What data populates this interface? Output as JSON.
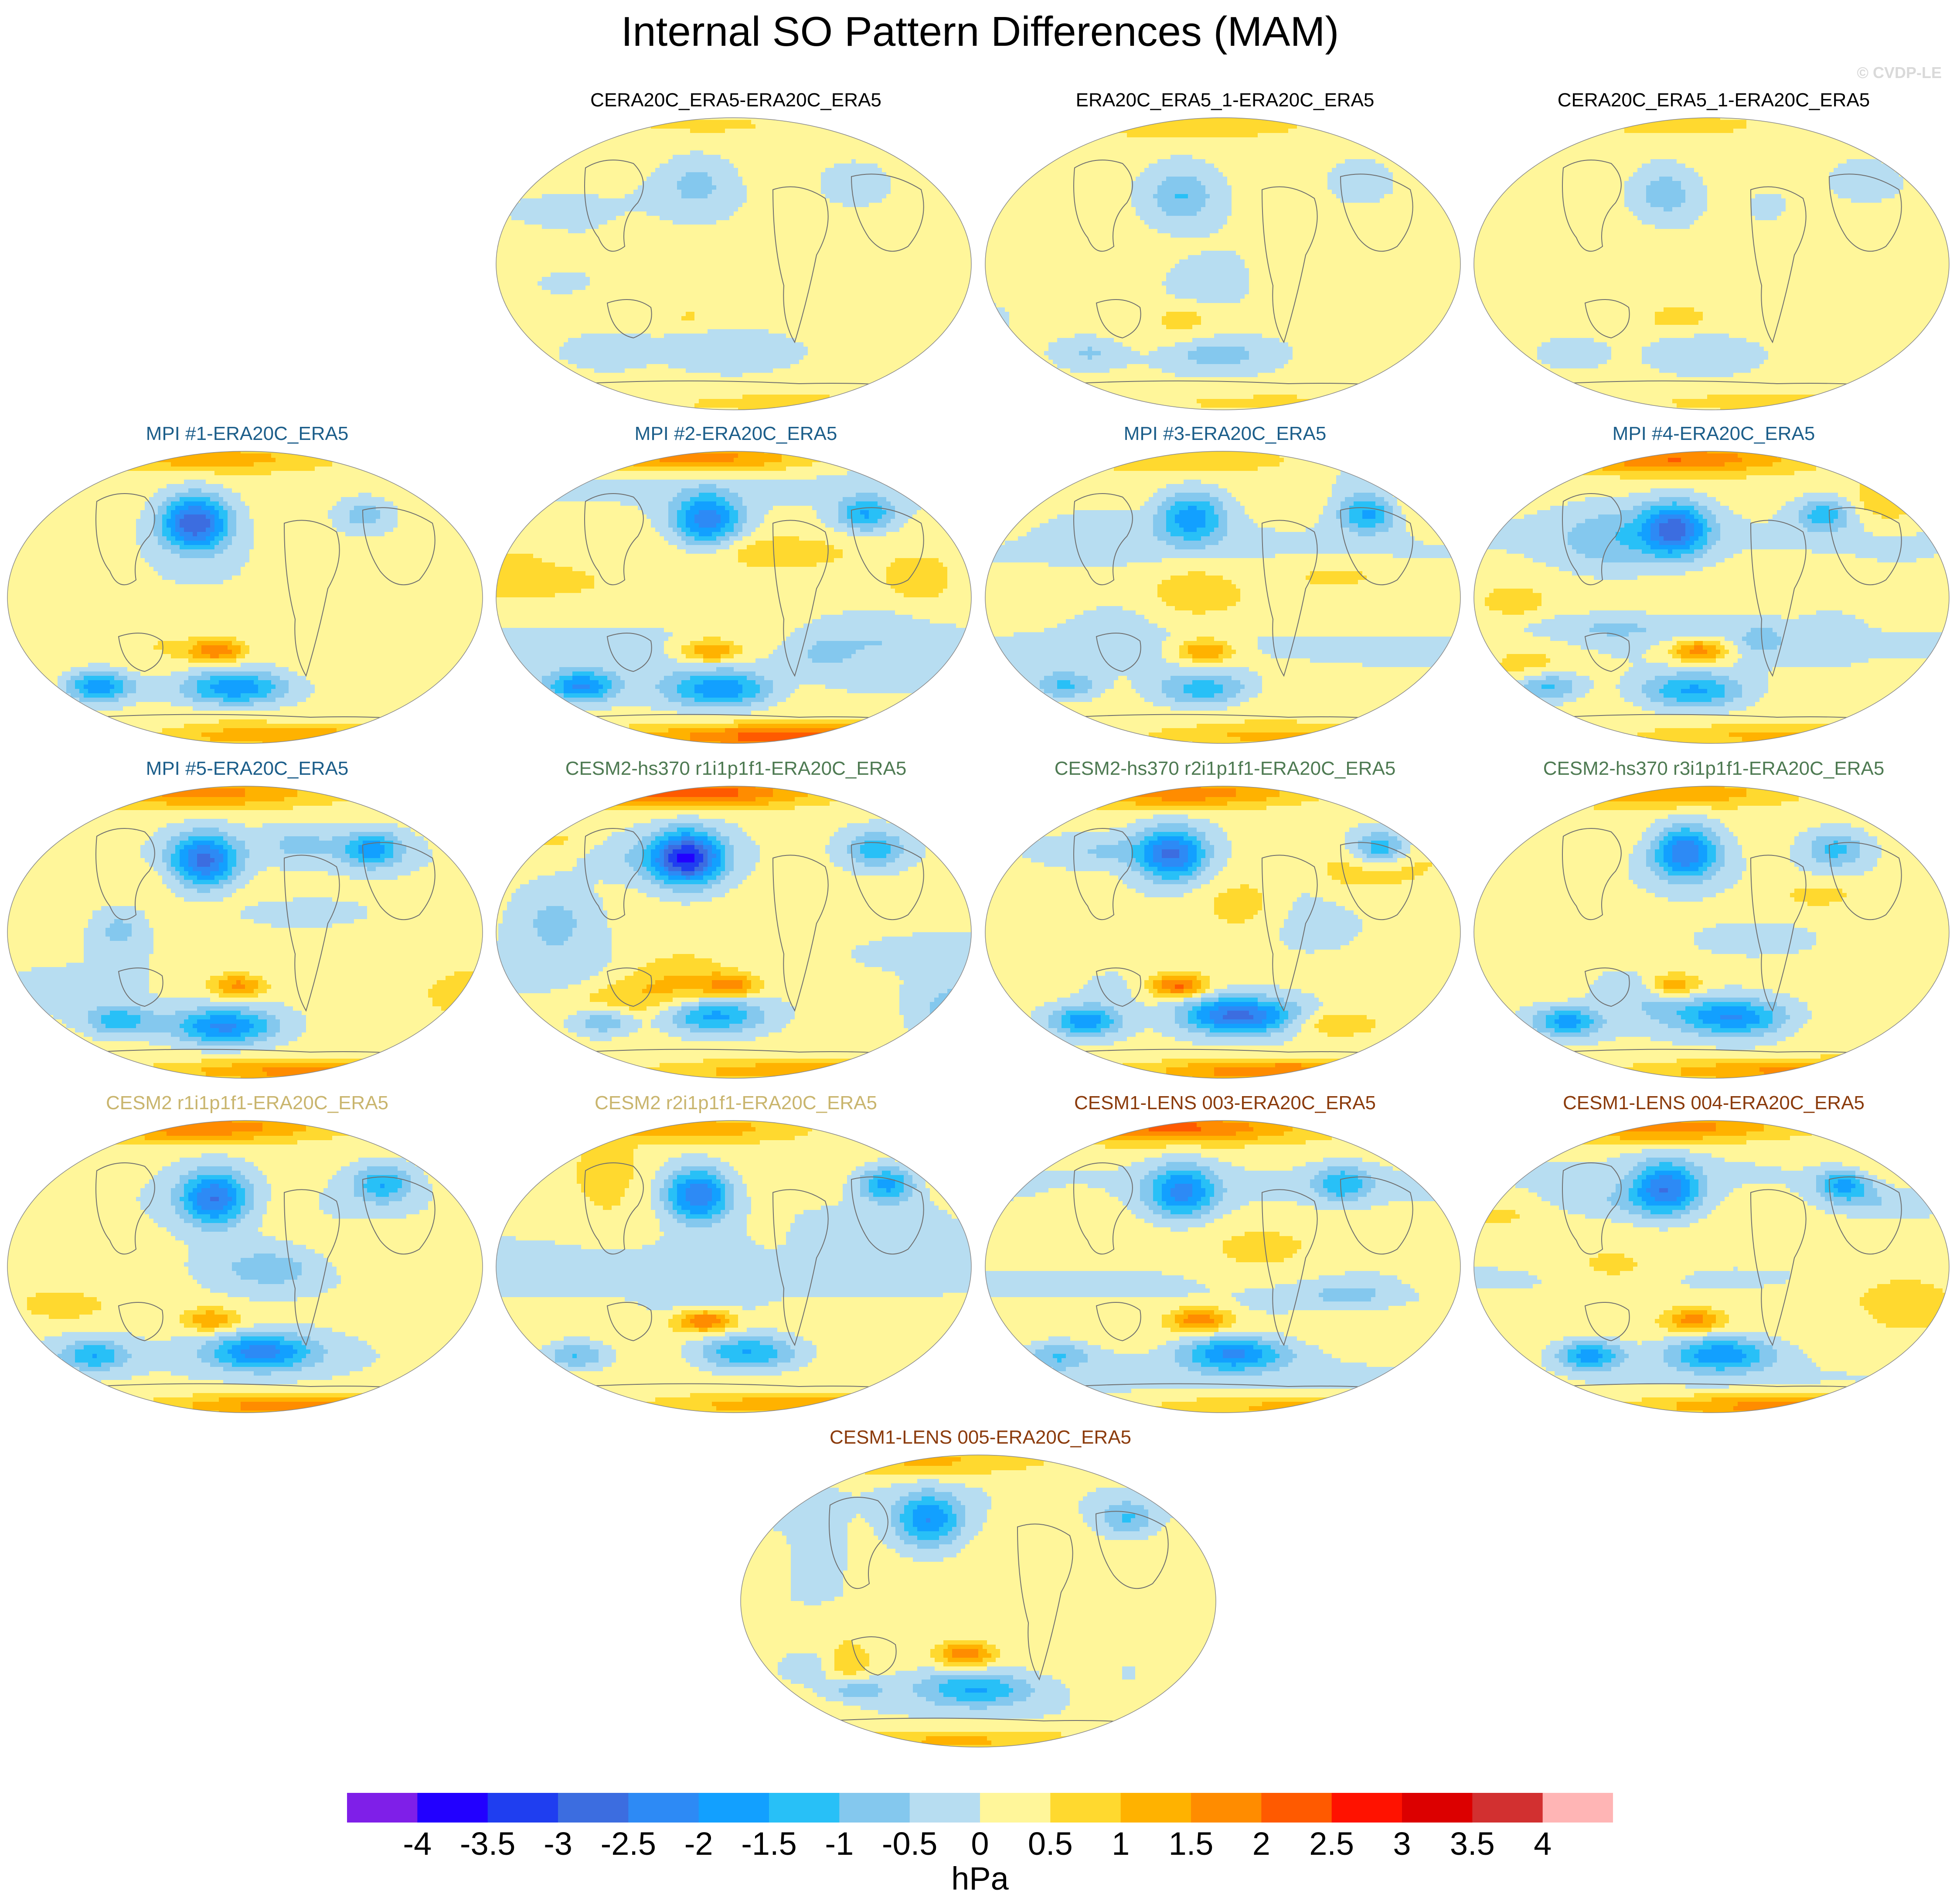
{
  "title": "Internal SO Pattern Differences (MAM)",
  "watermark": "© CVDP-LE",
  "colors": {
    "n4": "#7f1fe8",
    "n35": "#2200ff",
    "n3": "#1f3ef0",
    "n25": "#3c6de0",
    "n2": "#2d8af5",
    "n15": "#12a0ff",
    "n1": "#28c0f7",
    "n05": "#84c8ee",
    "n0": "#b7ddf1",
    "p0": "#fff69a",
    "p05": "#ffd92f",
    "p1": "#ffb200",
    "p15": "#ff8c00",
    "p2": "#ff5a00",
    "p25": "#ff1200",
    "p3": "#dc0000",
    "p35": "#d23030",
    "p4": "#ffb5b5"
  },
  "title_colors": {
    "obs": "#000000",
    "mpi": "#1c5e8a",
    "cesm2hs": "#4e7a52",
    "cesm2": "#c9b56e",
    "cesm1": "#8b3b0c"
  },
  "panels": [
    {
      "title": "CERA20C_ERA5-ERA20C_ERA5",
      "group": "obs",
      "amp": 0.5
    },
    {
      "title": "ERA20C_ERA5_1-ERA20C_ERA5",
      "group": "obs",
      "amp": 0.7
    },
    {
      "title": "CERA20C_ERA5_1-ERA20C_ERA5",
      "group": "obs",
      "amp": 0.6
    },
    {
      "title": "MPI #1-ERA20C_ERA5",
      "group": "mpi",
      "amp": 1.6
    },
    {
      "title": "MPI #2-ERA20C_ERA5",
      "group": "mpi",
      "amp": 1.7
    },
    {
      "title": "MPI #3-ERA20C_ERA5",
      "group": "mpi",
      "amp": 1.2
    },
    {
      "title": "MPI #4-ERA20C_ERA5",
      "group": "mpi",
      "amp": 1.6
    },
    {
      "title": "MPI #5-ERA20C_ERA5",
      "group": "mpi",
      "amp": 1.6
    },
    {
      "title": "CESM2-hs370 r1i1p1f1-ERA20C_ERA5",
      "group": "cesm2hs",
      "amp": 1.7
    },
    {
      "title": "CESM2-hs370 r2i1p1f1-ERA20C_ERA5",
      "group": "cesm2hs",
      "amp": 1.7
    },
    {
      "title": "CESM2-hs370 r3i1p1f1-ERA20C_ERA5",
      "group": "cesm2hs",
      "amp": 1.7
    },
    {
      "title": "CESM2 r1i1p1f1-ERA20C_ERA5",
      "group": "cesm2",
      "amp": 1.5
    },
    {
      "title": "CESM2 r2i1p1f1-ERA20C_ERA5",
      "group": "cesm2",
      "amp": 1.5
    },
    {
      "title": "CESM1-LENS 003-ERA20C_ERA5",
      "group": "cesm1",
      "amp": 1.5
    },
    {
      "title": "CESM1-LENS 004-ERA20C_ERA5",
      "group": "cesm1",
      "amp": 1.6
    },
    {
      "title": "CESM1-LENS 005-ERA20C_ERA5",
      "group": "cesm1",
      "amp": 1.3
    }
  ],
  "colorbar": {
    "labels": [
      "-4",
      "-3.5",
      "-3",
      "-2.5",
      "-2",
      "-1.5",
      "-1",
      "-0.5",
      "0",
      "0.5",
      "1",
      "1.5",
      "2",
      "2.5",
      "3",
      "3.5",
      "4"
    ],
    "units": "hPa"
  }
}
